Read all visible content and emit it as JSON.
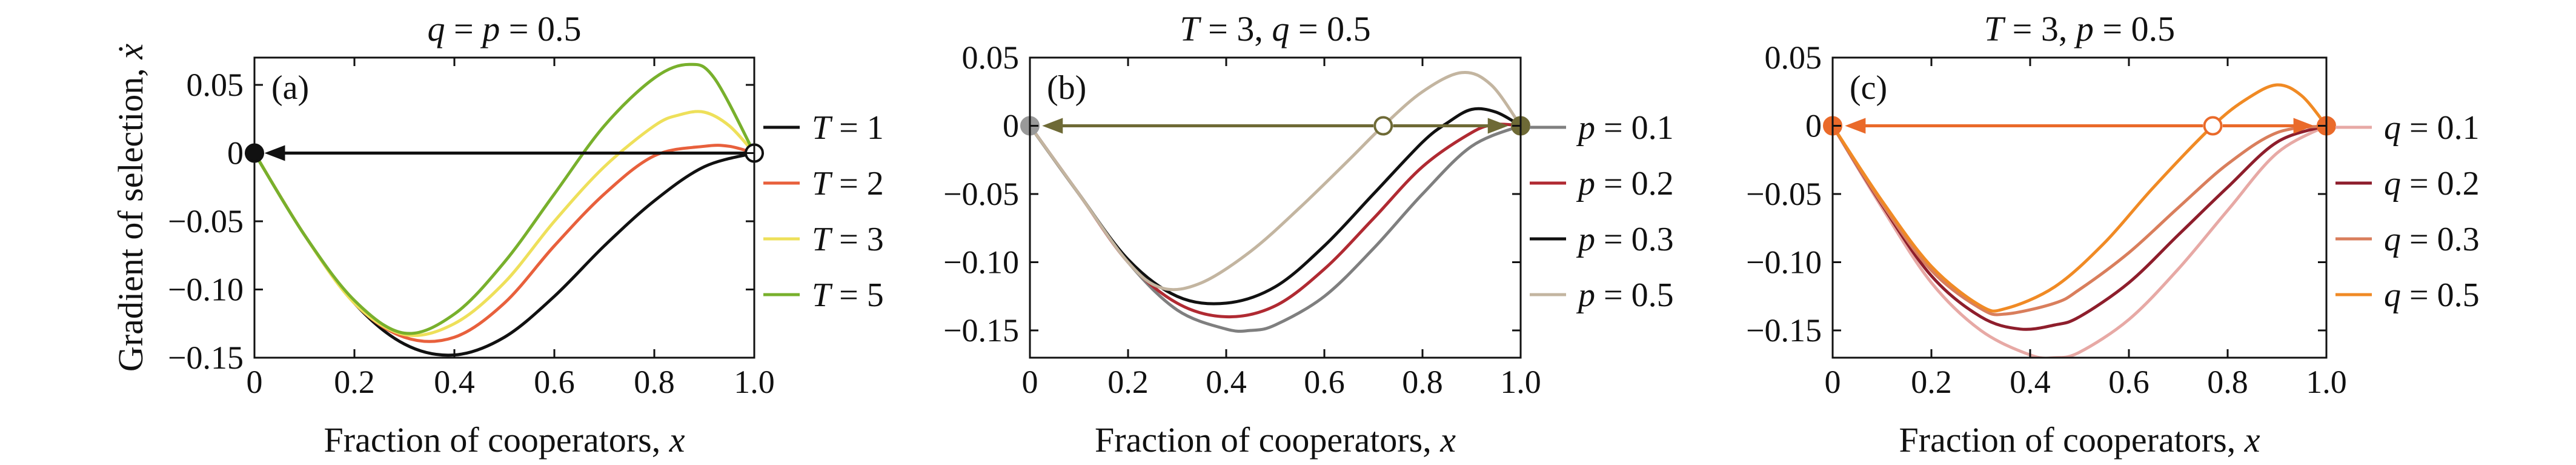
{
  "chart_data": [
    {
      "type": "line",
      "panel_label": "(a)",
      "title_parts": [
        {
          "t": "q",
          "it": true
        },
        {
          "t": " = ",
          "it": false
        },
        {
          "t": "p",
          "it": true
        },
        {
          "t": " = 0.5",
          "it": false
        }
      ],
      "xlabel_parts": [
        {
          "t": "Fraction of cooperators, ",
          "it": false
        },
        {
          "t": "x",
          "it": true
        }
      ],
      "ylabel_parts": [
        {
          "t": "Gradient of selection, ",
          "it": false
        },
        {
          "t": "ẋ",
          "it": true
        }
      ],
      "xlim": [
        0,
        1
      ],
      "ylim": [
        -0.15,
        0.07
      ],
      "xticks": [
        {
          "v": 0,
          "label": "0"
        },
        {
          "v": 0.2,
          "label": "0.2"
        },
        {
          "v": 0.4,
          "label": "0.4"
        },
        {
          "v": 0.6,
          "label": "0.6"
        },
        {
          "v": 0.8,
          "label": "0.8"
        },
        {
          "v": 1.0,
          "label": "1.0"
        }
      ],
      "yticks": [
        {
          "v": 0.05,
          "label": "0.05"
        },
        {
          "v": 0,
          "label": "0"
        },
        {
          "v": -0.05,
          "label": "−0.05"
        },
        {
          "v": -0.1,
          "label": "−0.10"
        },
        {
          "v": -0.15,
          "label": "−0.15"
        }
      ],
      "grid": false,
      "legend_position": "right-outside",
      "series": [
        {
          "name": "T = 1",
          "label_parts": [
            {
              "t": "T",
              "it": true
            },
            {
              "t": " = 1",
              "it": false
            }
          ],
          "color": "#111111",
          "x": [
            0,
            0.1,
            0.2,
            0.3,
            0.4,
            0.5,
            0.6,
            0.7,
            0.8,
            0.9,
            1.0
          ],
          "y": [
            0,
            -0.06,
            -0.11,
            -0.14,
            -0.148,
            -0.135,
            -0.105,
            -0.068,
            -0.035,
            -0.01,
            0
          ]
        },
        {
          "name": "T = 2",
          "label_parts": [
            {
              "t": "T",
              "it": true
            },
            {
              "t": " = 2",
              "it": false
            }
          ],
          "color": "#e8603c",
          "x": [
            0,
            0.1,
            0.2,
            0.3,
            0.4,
            0.5,
            0.6,
            0.7,
            0.8,
            0.9,
            0.95,
            1.0
          ],
          "y": [
            0,
            -0.06,
            -0.11,
            -0.135,
            -0.135,
            -0.11,
            -0.068,
            -0.03,
            -0.002,
            0.005,
            0.005,
            0
          ]
        },
        {
          "name": "T = 3",
          "label_parts": [
            {
              "t": "T",
              "it": true
            },
            {
              "t": " = 3",
              "it": false
            }
          ],
          "color": "#eee05a",
          "x": [
            0,
            0.1,
            0.2,
            0.3,
            0.4,
            0.5,
            0.6,
            0.7,
            0.8,
            0.85,
            0.9,
            0.95,
            1.0
          ],
          "y": [
            0,
            -0.06,
            -0.11,
            -0.133,
            -0.125,
            -0.095,
            -0.05,
            -0.01,
            0.02,
            0.028,
            0.03,
            0.02,
            0
          ]
        },
        {
          "name": "T = 5",
          "label_parts": [
            {
              "t": "T",
              "it": true
            },
            {
              "t": " = 5",
              "it": false
            }
          ],
          "color": "#78b02c",
          "x": [
            0,
            0.1,
            0.2,
            0.3,
            0.4,
            0.5,
            0.6,
            0.7,
            0.8,
            0.87,
            0.92,
            1.0
          ],
          "y": [
            0,
            -0.06,
            -0.108,
            -0.132,
            -0.118,
            -0.08,
            -0.03,
            0.02,
            0.055,
            0.065,
            0.055,
            0
          ]
        }
      ],
      "flow_arrows": [
        {
          "x1": 0.985,
          "x2": 0.02,
          "y": 0,
          "color": "#111111"
        }
      ],
      "fixed_points": [
        {
          "x": 0,
          "y": 0,
          "filled": true,
          "color": "#111111"
        },
        {
          "x": 1,
          "y": 0,
          "filled": false,
          "color": "#111111"
        }
      ]
    },
    {
      "type": "line",
      "panel_label": "(b)",
      "title_parts": [
        {
          "t": "T",
          "it": true
        },
        {
          "t": " = 3, ",
          "it": false
        },
        {
          "t": "q",
          "it": true
        },
        {
          "t": " = 0.5",
          "it": false
        }
      ],
      "xlabel_parts": [
        {
          "t": "Fraction of cooperators, ",
          "it": false
        },
        {
          "t": "x",
          "it": true
        }
      ],
      "ylabel_parts": [],
      "xlim": [
        0,
        1
      ],
      "ylim": [
        -0.17,
        0.05
      ],
      "xticks": [
        {
          "v": 0,
          "label": "0"
        },
        {
          "v": 0.2,
          "label": "0.2"
        },
        {
          "v": 0.4,
          "label": "0.4"
        },
        {
          "v": 0.6,
          "label": "0.6"
        },
        {
          "v": 0.8,
          "label": "0.8"
        },
        {
          "v": 1.0,
          "label": "1.0"
        }
      ],
      "yticks": [
        {
          "v": 0.05,
          "label": "0.05"
        },
        {
          "v": 0,
          "label": "0"
        },
        {
          "v": -0.05,
          "label": "−0.05"
        },
        {
          "v": -0.1,
          "label": "−0.10"
        },
        {
          "v": -0.15,
          "label": "−0.15"
        }
      ],
      "grid": false,
      "legend_position": "right-outside",
      "series": [
        {
          "name": "p = 0.1",
          "label_parts": [
            {
              "t": "p",
              "it": true
            },
            {
              "t": " = 0.1",
              "it": false
            }
          ],
          "color": "#7f7f7f",
          "x": [
            0,
            0.1,
            0.2,
            0.3,
            0.4,
            0.45,
            0.5,
            0.6,
            0.7,
            0.8,
            0.9,
            1.0
          ],
          "y": [
            0,
            -0.05,
            -0.1,
            -0.135,
            -0.149,
            -0.15,
            -0.146,
            -0.125,
            -0.09,
            -0.05,
            -0.015,
            0
          ]
        },
        {
          "name": "p = 0.2",
          "label_parts": [
            {
              "t": "p",
              "it": true
            },
            {
              "t": " = 0.2",
              "it": false
            }
          ],
          "color": "#b02a32",
          "x": [
            0,
            0.1,
            0.2,
            0.3,
            0.4,
            0.5,
            0.6,
            0.7,
            0.8,
            0.9,
            0.95,
            1.0
          ],
          "y": [
            0,
            -0.05,
            -0.1,
            -0.13,
            -0.14,
            -0.132,
            -0.105,
            -0.068,
            -0.03,
            -0.005,
            0.001,
            0
          ]
        },
        {
          "name": "p = 0.3",
          "label_parts": [
            {
              "t": "p",
              "it": true
            },
            {
              "t": " = 0.3",
              "it": false
            }
          ],
          "color": "#111111",
          "x": [
            0,
            0.1,
            0.2,
            0.3,
            0.4,
            0.5,
            0.6,
            0.7,
            0.8,
            0.85,
            0.9,
            0.95,
            1.0
          ],
          "y": [
            0,
            -0.05,
            -0.098,
            -0.125,
            -0.13,
            -0.118,
            -0.088,
            -0.05,
            -0.012,
            0.002,
            0.012,
            0.01,
            0
          ]
        },
        {
          "name": "p = 0.5",
          "label_parts": [
            {
              "t": "p",
              "it": true
            },
            {
              "t": " = 0.5",
              "it": false
            }
          ],
          "color": "#c3b5a0",
          "x": [
            0,
            0.1,
            0.2,
            0.27,
            0.35,
            0.45,
            0.55,
            0.65,
            0.72,
            0.8,
            0.88,
            0.94,
            1.0
          ],
          "y": [
            0,
            -0.05,
            -0.1,
            -0.119,
            -0.115,
            -0.092,
            -0.06,
            -0.025,
            0,
            0.025,
            0.039,
            0.03,
            0
          ]
        }
      ],
      "flow_arrows": [
        {
          "x1": 0.7,
          "x2": 0.025,
          "y": 0,
          "color": "#6e6a36"
        },
        {
          "x1": 0.74,
          "x2": 0.975,
          "y": 0,
          "color": "#6e6a36"
        }
      ],
      "fixed_points": [
        {
          "x": 0,
          "y": 0,
          "filled": true,
          "color": "#999999"
        },
        {
          "x": 0.72,
          "y": 0,
          "filled": false,
          "color": "#6e6a36"
        },
        {
          "x": 1,
          "y": 0,
          "filled": true,
          "color": "#6e6a36"
        }
      ]
    },
    {
      "type": "line",
      "panel_label": "(c)",
      "title_parts": [
        {
          "t": "T",
          "it": true
        },
        {
          "t": " = 3, ",
          "it": false
        },
        {
          "t": "p",
          "it": true
        },
        {
          "t": " = 0.5",
          "it": false
        }
      ],
      "xlabel_parts": [
        {
          "t": "Fraction of cooperators, ",
          "it": false
        },
        {
          "t": "x",
          "it": true
        }
      ],
      "ylabel_parts": [],
      "xlim": [
        0,
        1
      ],
      "ylim": [
        -0.17,
        0.05
      ],
      "xticks": [
        {
          "v": 0,
          "label": "0"
        },
        {
          "v": 0.2,
          "label": "0.2"
        },
        {
          "v": 0.4,
          "label": "0.4"
        },
        {
          "v": 0.6,
          "label": "0.6"
        },
        {
          "v": 0.8,
          "label": "0.8"
        },
        {
          "v": 1.0,
          "label": "1.0"
        }
      ],
      "yticks": [
        {
          "v": 0.05,
          "label": "0.05"
        },
        {
          "v": 0,
          "label": "0"
        },
        {
          "v": -0.05,
          "label": "−0.05"
        },
        {
          "v": -0.1,
          "label": "−0.10"
        },
        {
          "v": -0.15,
          "label": "−0.15"
        }
      ],
      "grid": false,
      "legend_position": "right-outside",
      "series": [
        {
          "name": "q = 0.1",
          "label_parts": [
            {
              "t": "q",
              "it": true
            },
            {
              "t": " = 0.1",
              "it": false
            }
          ],
          "color": "#e7a9a5",
          "x": [
            0,
            0.1,
            0.2,
            0.3,
            0.4,
            0.45,
            0.5,
            0.6,
            0.7,
            0.8,
            0.9,
            1.0
          ],
          "y": [
            0,
            -0.06,
            -0.115,
            -0.15,
            -0.168,
            -0.17,
            -0.166,
            -0.142,
            -0.105,
            -0.062,
            -0.02,
            0
          ]
        },
        {
          "name": "q = 0.2",
          "label_parts": [
            {
              "t": "q",
              "it": true
            },
            {
              "t": " = 0.2",
              "it": false
            }
          ],
          "color": "#8e1e2c",
          "x": [
            0,
            0.1,
            0.2,
            0.3,
            0.38,
            0.45,
            0.5,
            0.6,
            0.7,
            0.8,
            0.9,
            1.0
          ],
          "y": [
            0,
            -0.058,
            -0.11,
            -0.14,
            -0.149,
            -0.146,
            -0.14,
            -0.115,
            -0.08,
            -0.045,
            -0.012,
            0
          ]
        },
        {
          "name": "q = 0.3",
          "label_parts": [
            {
              "t": "q",
              "it": true
            },
            {
              "t": " = 0.3",
              "it": false
            }
          ],
          "color": "#d97e5c",
          "x": [
            0,
            0.1,
            0.2,
            0.3,
            0.35,
            0.45,
            0.5,
            0.6,
            0.7,
            0.8,
            0.9,
            1.0
          ],
          "y": [
            0,
            -0.057,
            -0.106,
            -0.134,
            -0.138,
            -0.13,
            -0.12,
            -0.093,
            -0.06,
            -0.028,
            -0.005,
            0
          ]
        },
        {
          "name": "q = 0.5",
          "label_parts": [
            {
              "t": "q",
              "it": true
            },
            {
              "t": " = 0.5",
              "it": false
            }
          ],
          "color": "#f08a24",
          "x": [
            0,
            0.1,
            0.2,
            0.3,
            0.35,
            0.45,
            0.55,
            0.65,
            0.77,
            0.84,
            0.9,
            0.95,
            1.0
          ],
          "y": [
            0,
            -0.055,
            -0.103,
            -0.132,
            -0.134,
            -0.118,
            -0.086,
            -0.045,
            0,
            0.02,
            0.03,
            0.022,
            0
          ]
        }
      ],
      "flow_arrows": [
        {
          "x1": 0.75,
          "x2": 0.025,
          "y": 0,
          "color": "#ea6a2a"
        },
        {
          "x1": 0.79,
          "x2": 0.975,
          "y": 0,
          "color": "#ea6a2a"
        }
      ],
      "fixed_points": [
        {
          "x": 0,
          "y": 0,
          "filled": true,
          "color": "#ea6a2a"
        },
        {
          "x": 0.77,
          "y": 0,
          "filled": false,
          "color": "#ea6a2a"
        },
        {
          "x": 1,
          "y": 0,
          "filled": true,
          "color": "#ea6a2a"
        }
      ]
    }
  ]
}
